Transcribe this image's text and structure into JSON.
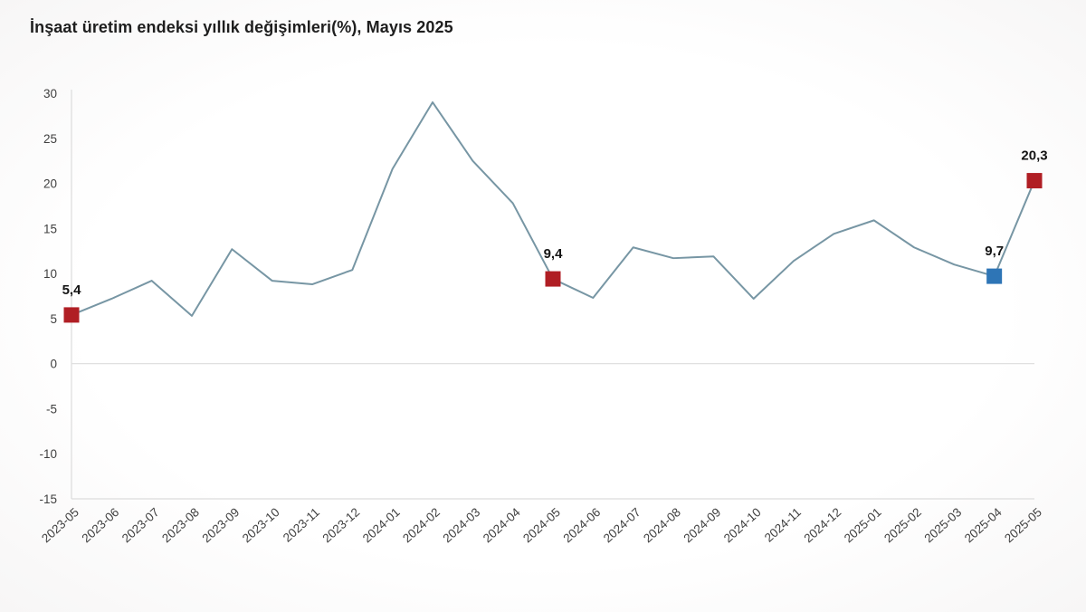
{
  "page": {
    "title": "İnşaat üretim endeksi yıllık değişimleri(%), Mayıs 2025"
  },
  "chart_data": {
    "type": "line",
    "title": "İnşaat üretim endeksi yıllık değişimleri(%), Mayıs 2025",
    "x": [
      "2023-05",
      "2023-06",
      "2023-07",
      "2023-08",
      "2023-09",
      "2023-10",
      "2023-11",
      "2023-12",
      "2024-01",
      "2024-02",
      "2024-03",
      "2024-04",
      "2024-05",
      "2024-06",
      "2024-07",
      "2024-08",
      "2024-09",
      "2024-10",
      "2024-11",
      "2024-12",
      "2025-01",
      "2025-02",
      "2025-03",
      "2025-04",
      "2025-05"
    ],
    "values": [
      5.4,
      7.2,
      9.2,
      5.3,
      12.7,
      9.2,
      8.8,
      10.4,
      21.6,
      29.0,
      22.5,
      17.8,
      9.4,
      7.3,
      12.9,
      11.7,
      11.9,
      7.2,
      11.4,
      14.4,
      15.9,
      12.9,
      11.0,
      9.7,
      20.3
    ],
    "xlabel": "",
    "ylabel": "",
    "ylim": [
      -15,
      30
    ],
    "ytick_step": 5,
    "ytick_labels": [
      "30",
      "25",
      "20",
      "15",
      "10",
      "5",
      "0",
      "-5",
      "-10",
      "-15"
    ],
    "grid": "zero-line-and-bottom-only",
    "legend_position": "none",
    "line_color": "#7796a4",
    "axis_color": "#dcdcdc",
    "tick_text_color": "#3f3f3f",
    "annotated_points": [
      {
        "x": "2023-05",
        "index": 0,
        "value": 5.4,
        "label": "5,4",
        "marker_color": "#b01e24",
        "marker_shape": "square"
      },
      {
        "x": "2024-05",
        "index": 12,
        "value": 9.4,
        "label": "9,4",
        "marker_color": "#b01e24",
        "marker_shape": "square"
      },
      {
        "x": "2025-04",
        "index": 23,
        "value": 9.7,
        "label": "9,7",
        "marker_color": "#2e75b6",
        "marker_shape": "square"
      },
      {
        "x": "2025-05",
        "index": 24,
        "value": 20.3,
        "label": "20,3",
        "marker_color": "#b01e24",
        "marker_shape": "square"
      }
    ]
  }
}
